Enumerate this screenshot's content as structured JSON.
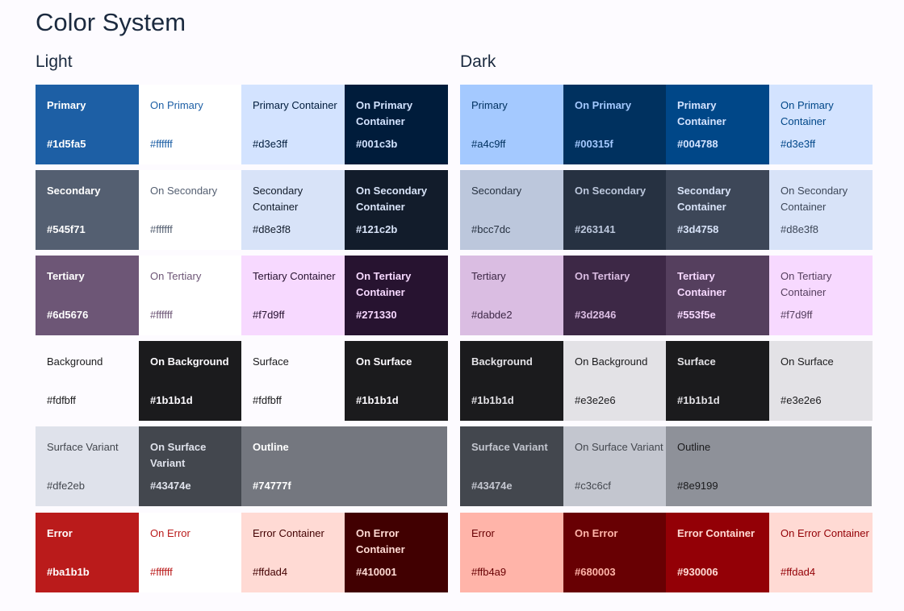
{
  "page": {
    "title": "Color System"
  },
  "light": {
    "title": "Light",
    "rows": [
      [
        {
          "name": "Primary",
          "hex": "#1d5fa5",
          "bg": "#1d5fa5",
          "fg": "#ffffff",
          "bold": true
        },
        {
          "name": "On Primary",
          "hex": "#ffffff",
          "bg": "#ffffff",
          "fg": "#1d5fa5",
          "bold": false
        },
        {
          "name": "Primary Container",
          "hex": "#d3e3ff",
          "bg": "#d3e3ff",
          "fg": "#001c3b",
          "bold": false
        },
        {
          "name": "On Primary Container",
          "hex": "#001c3b",
          "bg": "#001c3b",
          "fg": "#d3e3ff",
          "bold": true
        }
      ],
      [
        {
          "name": "Secondary",
          "hex": "#545f71",
          "bg": "#545f71",
          "fg": "#ffffff",
          "bold": true
        },
        {
          "name": "On Secondary",
          "hex": "#ffffff",
          "bg": "#ffffff",
          "fg": "#545f71",
          "bold": false
        },
        {
          "name": "Secondary Container",
          "hex": "#d8e3f8",
          "bg": "#d8e3f8",
          "fg": "#121c2b",
          "bold": false
        },
        {
          "name": "On Secondary Container",
          "hex": "#121c2b",
          "bg": "#121c2b",
          "fg": "#d8e3f8",
          "bold": true
        }
      ],
      [
        {
          "name": "Tertiary",
          "hex": "#6d5676",
          "bg": "#6d5676",
          "fg": "#ffffff",
          "bold": true
        },
        {
          "name": "On Tertiary",
          "hex": "#ffffff",
          "bg": "#ffffff",
          "fg": "#6d5676",
          "bold": false
        },
        {
          "name": "Tertiary Container",
          "hex": "#f7d9ff",
          "bg": "#f7d9ff",
          "fg": "#271330",
          "bold": false
        },
        {
          "name": "On Tertiary Container",
          "hex": "#271330",
          "bg": "#271330",
          "fg": "#f7d9ff",
          "bold": true
        }
      ],
      [
        {
          "name": "Background",
          "hex": "#fdfbff",
          "bg": "#fdfbff",
          "fg": "#1b1b1d",
          "bold": false
        },
        {
          "name": "On Background",
          "hex": "#1b1b1d",
          "bg": "#1b1b1d",
          "fg": "#fdfbff",
          "bold": true
        },
        {
          "name": "Surface",
          "hex": "#fdfbff",
          "bg": "#fdfbff",
          "fg": "#1b1b1d",
          "bold": false
        },
        {
          "name": "On Surface",
          "hex": "#1b1b1d",
          "bg": "#1b1b1d",
          "fg": "#fdfbff",
          "bold": true
        }
      ],
      [
        {
          "name": "Surface Variant",
          "hex": "#dfe2eb",
          "bg": "#dfe2eb",
          "fg": "#43474e",
          "bold": false
        },
        {
          "name": "On Surface Variant",
          "hex": "#43474e",
          "bg": "#43474e",
          "fg": "#dfe2eb",
          "bold": true
        },
        {
          "name": "Outline",
          "hex": "#74777f",
          "bg": "#74777f",
          "fg": "#ffffff",
          "bold": true,
          "wide": true
        }
      ],
      [
        {
          "name": "Error",
          "hex": "#ba1b1b",
          "bg": "#ba1b1b",
          "fg": "#ffffff",
          "bold": true
        },
        {
          "name": "On Error",
          "hex": "#ffffff",
          "bg": "#ffffff",
          "fg": "#ba1b1b",
          "bold": false
        },
        {
          "name": "Error Container",
          "hex": "#ffdad4",
          "bg": "#ffdad4",
          "fg": "#410001",
          "bold": false
        },
        {
          "name": "On Error Container",
          "hex": "#410001",
          "bg": "#410001",
          "fg": "#ffdad4",
          "bold": true
        }
      ]
    ]
  },
  "dark": {
    "title": "Dark",
    "rows": [
      [
        {
          "name": "Primary",
          "hex": "#a4c9ff",
          "bg": "#a4c9ff",
          "fg": "#00315f",
          "bold": false
        },
        {
          "name": "On Primary",
          "hex": "#00315f",
          "bg": "#00315f",
          "fg": "#a4c9ff",
          "bold": true
        },
        {
          "name": "Primary Container",
          "hex": "#004788",
          "bg": "#004788",
          "fg": "#d3e3ff",
          "bold": true
        },
        {
          "name": "On Primary Container",
          "hex": "#d3e3ff",
          "bg": "#d3e3ff",
          "fg": "#004788",
          "bold": false
        }
      ],
      [
        {
          "name": "Secondary",
          "hex": "#bcc7dc",
          "bg": "#bcc7dc",
          "fg": "#263141",
          "bold": false
        },
        {
          "name": "On Secondary",
          "hex": "#263141",
          "bg": "#263141",
          "fg": "#bcc7dc",
          "bold": true
        },
        {
          "name": "Secondary Container",
          "hex": "#3d4758",
          "bg": "#3d4758",
          "fg": "#d8e3f8",
          "bold": true
        },
        {
          "name": "On Secondary Container",
          "hex": "#d8e3f8",
          "bg": "#d8e3f8",
          "fg": "#3d4758",
          "bold": false
        }
      ],
      [
        {
          "name": "Tertiary",
          "hex": "#dabde2",
          "bg": "#dabde2",
          "fg": "#3d2846",
          "bold": false
        },
        {
          "name": "On Tertiary",
          "hex": "#3d2846",
          "bg": "#3d2846",
          "fg": "#dabde2",
          "bold": true
        },
        {
          "name": "Tertiary Container",
          "hex": "#553f5e",
          "bg": "#553f5e",
          "fg": "#f7d9ff",
          "bold": true
        },
        {
          "name": "On Tertiary Container",
          "hex": "#f7d9ff",
          "bg": "#f7d9ff",
          "fg": "#553f5e",
          "bold": false
        }
      ],
      [
        {
          "name": "Background",
          "hex": "#1b1b1d",
          "bg": "#1b1b1d",
          "fg": "#e3e2e6",
          "bold": true
        },
        {
          "name": "On Background",
          "hex": "#e3e2e6",
          "bg": "#e3e2e6",
          "fg": "#1b1b1d",
          "bold": false
        },
        {
          "name": "Surface",
          "hex": "#1b1b1d",
          "bg": "#1b1b1d",
          "fg": "#e3e2e6",
          "bold": true
        },
        {
          "name": "On Surface",
          "hex": "#e3e2e6",
          "bg": "#e3e2e6",
          "fg": "#1b1b1d",
          "bold": false
        }
      ],
      [
        {
          "name": "Surface Variant",
          "hex": "#43474e",
          "bg": "#43474e",
          "fg": "#c3c6cf",
          "bold": true
        },
        {
          "name": "On Surface Variant",
          "hex": "#c3c6cf",
          "bg": "#c3c6cf",
          "fg": "#43474e",
          "bold": false
        },
        {
          "name": "Outline",
          "hex": "#8e9199",
          "bg": "#8e9199",
          "fg": "#1b1b1d",
          "bold": false,
          "wide": true
        }
      ],
      [
        {
          "name": "Error",
          "hex": "#ffb4a9",
          "bg": "#ffb4a9",
          "fg": "#680003",
          "bold": false
        },
        {
          "name": "On Error",
          "hex": "#680003",
          "bg": "#680003",
          "fg": "#ffb4a9",
          "bold": true
        },
        {
          "name": "Error Container",
          "hex": "#930006",
          "bg": "#930006",
          "fg": "#ffdad4",
          "bold": true
        },
        {
          "name": "On Error Container",
          "hex": "#ffdad4",
          "bg": "#ffdad4",
          "fg": "#930006",
          "bold": false
        }
      ]
    ]
  }
}
